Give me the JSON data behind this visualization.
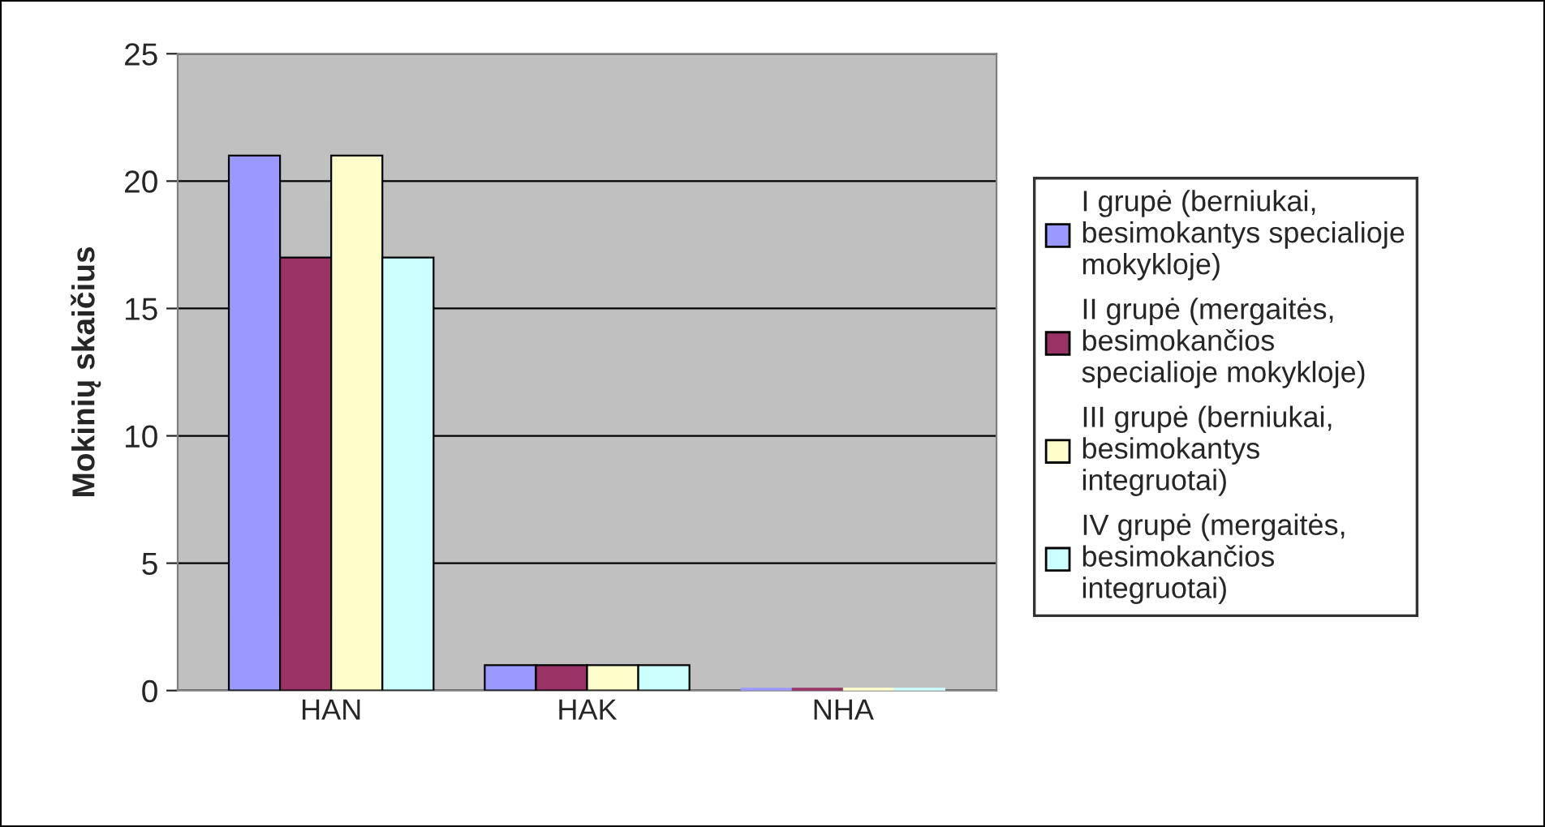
{
  "chart_data": {
    "type": "bar",
    "ylabel": "Mokinių skaičius",
    "categories": [
      "HAN",
      "HAK",
      "NHA"
    ],
    "series": [
      {
        "name": "I grupė (berniukai,\nbesimokantys specialioje\nmokykloje)",
        "color": "#9999ff",
        "values": [
          21,
          1,
          0
        ]
      },
      {
        "name": "II grupė (mergaitės,\nbesimokančios\nspecialioje mokykloje)",
        "color": "#993366",
        "values": [
          17,
          1,
          0
        ]
      },
      {
        "name": "III grupė (berniukai,\nbesimokantys\nintegruotai)",
        "color": "#ffffcc",
        "values": [
          21,
          1,
          0
        ]
      },
      {
        "name": "IV grupė (mergaitės,\nbesimokančios\nintegruotai)",
        "color": "#ccffff",
        "values": [
          17,
          1,
          0
        ]
      }
    ],
    "ylim": [
      0,
      25
    ],
    "yticks": [
      0,
      5,
      10,
      15,
      20,
      25
    ],
    "grid": "y",
    "legend": "right"
  }
}
